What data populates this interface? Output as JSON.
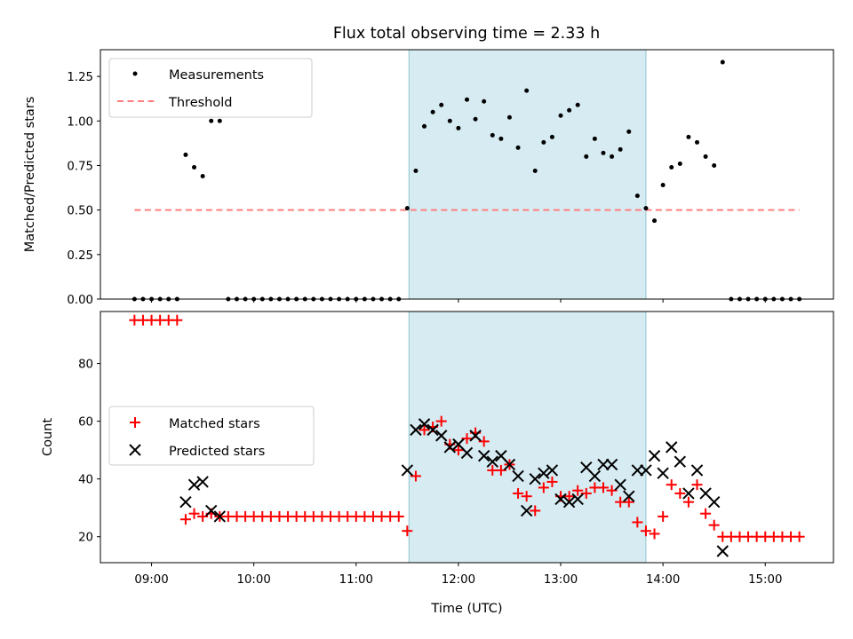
{
  "title": "Flux total observing time = 2.33 h",
  "colors": {
    "measurement": "#000000",
    "threshold": "#ff7f7f",
    "matched": "#ff0000",
    "predicted": "#000000",
    "span": "#add8e6"
  },
  "chart_data": [
    {
      "type": "scatter",
      "ylabel": "Matched/Predicted stars",
      "xlabel": "",
      "x_units": "hours UTC",
      "xlim": [
        "08:30",
        "15:40"
      ],
      "ylim": [
        0,
        1.4
      ],
      "yticks": [
        "0.00",
        "0.25",
        "0.50",
        "0.75",
        "1.00",
        "1.25"
      ],
      "highlight_span": [
        "11:31",
        "13:50"
      ],
      "legend": {
        "position": "upper left",
        "entries": [
          "Measurements",
          "Threshold"
        ]
      },
      "threshold": {
        "name": "Threshold",
        "x": [
          "08:50",
          "15:20"
        ],
        "y": 0.5
      },
      "series": [
        {
          "name": "Measurements",
          "x": [
            "08:50",
            "08:55",
            "09:00",
            "09:05",
            "09:10",
            "09:15",
            "09:20",
            "09:25",
            "09:30",
            "09:35",
            "09:40",
            "09:45",
            "09:50",
            "09:55",
            "10:00",
            "10:05",
            "10:10",
            "10:15",
            "10:20",
            "10:25",
            "10:30",
            "10:35",
            "10:40",
            "10:45",
            "10:50",
            "10:55",
            "11:00",
            "11:05",
            "11:10",
            "11:15",
            "11:20",
            "11:25",
            "11:30",
            "11:35",
            "11:40",
            "11:45",
            "11:50",
            "11:55",
            "12:00",
            "12:05",
            "12:10",
            "12:15",
            "12:20",
            "12:25",
            "12:30",
            "12:35",
            "12:40",
            "12:45",
            "12:50",
            "12:55",
            "13:00",
            "13:05",
            "13:10",
            "13:15",
            "13:20",
            "13:25",
            "13:30",
            "13:35",
            "13:40",
            "13:45",
            "13:50",
            "13:55",
            "14:00",
            "14:05",
            "14:10",
            "14:15",
            "14:20",
            "14:25",
            "14:30",
            "14:35",
            "14:40",
            "14:45",
            "14:50",
            "14:55",
            "15:00",
            "15:05",
            "15:10",
            "15:15",
            "15:20"
          ],
          "y": [
            0,
            0,
            0,
            0,
            0,
            0,
            0.81,
            0.74,
            0.69,
            1.0,
            1.0,
            0,
            0,
            0,
            0,
            0,
            0,
            0,
            0,
            0,
            0,
            0,
            0,
            0,
            0,
            0,
            0,
            0,
            0,
            0,
            0,
            0,
            0.51,
            0.72,
            0.97,
            1.05,
            1.09,
            1.0,
            0.96,
            1.12,
            1.01,
            1.11,
            0.92,
            0.9,
            1.02,
            0.85,
            1.17,
            0.72,
            0.88,
            0.91,
            1.03,
            1.06,
            1.09,
            0.8,
            0.9,
            0.82,
            0.8,
            0.84,
            0.94,
            0.58,
            0.51,
            0.44,
            0.64,
            0.74,
            0.76,
            0.91,
            0.88,
            0.8,
            0.75,
            1.33,
            0,
            0,
            0,
            0,
            0,
            0,
            0,
            0,
            0
          ]
        }
      ]
    },
    {
      "type": "scatter",
      "ylabel": "Count",
      "xlabel": "Time (UTC)",
      "x_units": "hours UTC",
      "xlim": [
        "08:30",
        "15:40"
      ],
      "ylim": [
        11,
        98
      ],
      "yticks": [
        "20",
        "40",
        "60",
        "80"
      ],
      "xticks": [
        "09:00",
        "10:00",
        "11:00",
        "12:00",
        "13:00",
        "14:00",
        "15:00"
      ],
      "highlight_span": [
        "11:31",
        "13:50"
      ],
      "legend": {
        "position": "center left",
        "entries": [
          "Matched stars",
          "Predicted stars"
        ]
      },
      "series": [
        {
          "name": "Matched stars",
          "marker": "plus",
          "x": [
            "08:50",
            "08:55",
            "09:00",
            "09:05",
            "09:10",
            "09:15",
            "09:20",
            "09:25",
            "09:30",
            "09:35",
            "09:40",
            "09:45",
            "09:50",
            "09:55",
            "10:00",
            "10:05",
            "10:10",
            "10:15",
            "10:20",
            "10:25",
            "10:30",
            "10:35",
            "10:40",
            "10:45",
            "10:50",
            "10:55",
            "11:00",
            "11:05",
            "11:10",
            "11:15",
            "11:20",
            "11:25",
            "11:30",
            "11:35",
            "11:40",
            "11:45",
            "11:50",
            "11:55",
            "12:00",
            "12:05",
            "12:10",
            "12:15",
            "12:20",
            "12:25",
            "12:30",
            "12:35",
            "12:40",
            "12:45",
            "12:50",
            "12:55",
            "13:00",
            "13:05",
            "13:10",
            "13:15",
            "13:20",
            "13:25",
            "13:30",
            "13:35",
            "13:40",
            "13:45",
            "13:50",
            "13:55",
            "14:00",
            "14:05",
            "14:10",
            "14:15",
            "14:20",
            "14:25",
            "14:30",
            "14:35",
            "14:40",
            "14:45",
            "14:50",
            "14:55",
            "15:00",
            "15:05",
            "15:10",
            "15:15",
            "15:20"
          ],
          "y": [
            95,
            95,
            95,
            95,
            95,
            95,
            26,
            28,
            27,
            28,
            27,
            27,
            27,
            27,
            27,
            27,
            27,
            27,
            27,
            27,
            27,
            27,
            27,
            27,
            27,
            27,
            27,
            27,
            27,
            27,
            27,
            27,
            22,
            41,
            57,
            58,
            60,
            52,
            50,
            54,
            56,
            53,
            43,
            43,
            45,
            35,
            34,
            29,
            37,
            39,
            34,
            34,
            36,
            35,
            37,
            37,
            36,
            32,
            32,
            25,
            22,
            21,
            27,
            38,
            35,
            32,
            38,
            28,
            24,
            20,
            20,
            20,
            20,
            20,
            20,
            20,
            20,
            20,
            20
          ]
        },
        {
          "name": "Predicted stars",
          "marker": "x",
          "x": [
            "09:20",
            "09:25",
            "09:30",
            "09:35",
            "09:40",
            "11:30",
            "11:35",
            "11:40",
            "11:45",
            "11:50",
            "11:55",
            "12:00",
            "12:05",
            "12:10",
            "12:15",
            "12:20",
            "12:25",
            "12:30",
            "12:35",
            "12:40",
            "12:45",
            "12:50",
            "12:55",
            "13:00",
            "13:05",
            "13:10",
            "13:15",
            "13:20",
            "13:25",
            "13:30",
            "13:35",
            "13:40",
            "13:45",
            "13:50",
            "13:55",
            "14:00",
            "14:05",
            "14:10",
            "14:15",
            "14:20",
            "14:25",
            "14:30",
            "14:35"
          ],
          "y": [
            32,
            38,
            39,
            29,
            27,
            43,
            57,
            59,
            57,
            55,
            51,
            52,
            49,
            55,
            48,
            46,
            48,
            45,
            41,
            29,
            40,
            42,
            43,
            33,
            32,
            33,
            44,
            41,
            45,
            45,
            38,
            34,
            43,
            43,
            48,
            42,
            51,
            46,
            35,
            43,
            35,
            32,
            15
          ]
        }
      ]
    }
  ]
}
